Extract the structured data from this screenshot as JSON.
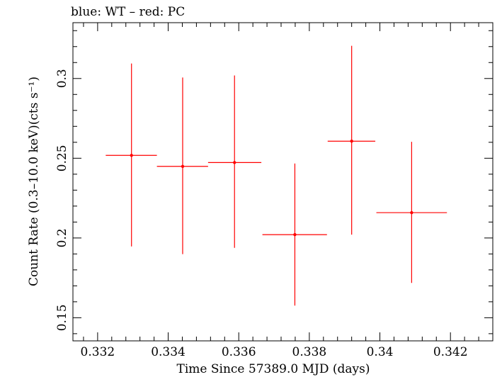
{
  "chart_data": {
    "type": "scatter",
    "title": "blue: WT – red: PC",
    "xlabel": "Time Since 57389.0 MJD (days)",
    "ylabel": "Count Rate (0.3–10.0 keV)(cts s⁻¹)",
    "xlim": [
      0.3313,
      0.3432
    ],
    "ylim": [
      0.1355,
      0.335
    ],
    "x_ticks": [
      0.332,
      0.334,
      0.336,
      0.338,
      0.34,
      0.342
    ],
    "x_tick_labels": [
      "0.332",
      "0.334",
      "0.336",
      "0.338",
      "0.34",
      "0.342"
    ],
    "y_ticks": [
      0.15,
      0.2,
      0.25,
      0.3
    ],
    "y_tick_labels": [
      "0.15",
      "0.2",
      "0.25",
      "0.3"
    ],
    "grid": false,
    "series": [
      {
        "name": "PC",
        "color": "#ff0000",
        "points": [
          {
            "x": 0.33296,
            "y": 0.2518,
            "xerr_lo": 0.33223,
            "xerr_hi": 0.33368,
            "yerr_lo": 0.1947,
            "yerr_hi": 0.3094
          },
          {
            "x": 0.33441,
            "y": 0.2449,
            "xerr_lo": 0.33368,
            "xerr_hi": 0.33513,
            "yerr_lo": 0.1899,
            "yerr_hi": 0.3006
          },
          {
            "x": 0.33588,
            "y": 0.2473,
            "xerr_lo": 0.33513,
            "xerr_hi": 0.33664,
            "yerr_lo": 0.1938,
            "yerr_hi": 0.3019
          },
          {
            "x": 0.33759,
            "y": 0.2021,
            "xerr_lo": 0.33667,
            "xerr_hi": 0.3385,
            "yerr_lo": 0.1576,
            "yerr_hi": 0.2467
          },
          {
            "x": 0.3392,
            "y": 0.2607,
            "xerr_lo": 0.33852,
            "xerr_hi": 0.33987,
            "yerr_lo": 0.2021,
            "yerr_hi": 0.3205
          },
          {
            "x": 0.3409,
            "y": 0.2159,
            "xerr_lo": 0.3399,
            "xerr_hi": 0.3419,
            "yerr_lo": 0.1718,
            "yerr_hi": 0.2603
          }
        ]
      }
    ]
  }
}
